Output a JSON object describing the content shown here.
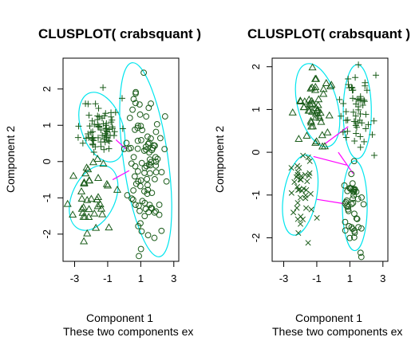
{
  "chart_data": [
    {
      "type": "scatter",
      "title": "CLUSPLOT( crabsquant )",
      "xlabel": "Component 1",
      "ylabel": "Component 2",
      "subtitle": "These two components ex",
      "x_ticks": [
        "-3",
        "-1",
        "1",
        "3"
      ],
      "y_ticks": [
        "2",
        "1",
        "0",
        "-1",
        "-2"
      ],
      "xlim": [
        -3.7,
        3.3
      ],
      "ylim": [
        -2.75,
        2.85
      ],
      "ellipse_color": "#00e5ee",
      "line_color": "#ff00ff",
      "point_color": "#1a5c1a",
      "ellipses": [
        {
          "cx": -1.35,
          "cy": 0.95,
          "rx": 1.25,
          "ry": 1.0,
          "angle": 20
        },
        {
          "cx": -1.85,
          "cy": -1.0,
          "rx": 1.3,
          "ry": 0.95,
          "angle": -25
        },
        {
          "cx": 1.3,
          "cy": 0.05,
          "rx": 1.35,
          "ry": 2.7,
          "angle": 8
        }
      ],
      "links": [
        [
          [
            -0.5,
            0.6
          ],
          [
            0.1,
            0.35
          ]
        ],
        [
          [
            -0.7,
            -0.5
          ],
          [
            0.3,
            -0.25
          ]
        ]
      ],
      "groups": [
        {
          "symbol": "plus",
          "cx": -1.4,
          "cy": 0.95,
          "sx": 0.55,
          "sy": 0.4,
          "n": 70,
          "seed": 11
        },
        {
          "symbol": "triangle",
          "cx": -1.8,
          "cy": -1.05,
          "sx": 0.6,
          "sy": 0.45,
          "n": 40,
          "seed": 23
        },
        {
          "symbol": "circle",
          "cx": 1.3,
          "cy": -0.1,
          "sx": 0.55,
          "sy": 1.05,
          "n": 100,
          "seed": 37
        }
      ]
    },
    {
      "type": "scatter",
      "title": "CLUSPLOT( crabsquant )",
      "xlabel": "Component 1",
      "ylabel": "Component 2",
      "subtitle": "These two components ex",
      "x_ticks": [
        "-3",
        "-1",
        "1",
        "3"
      ],
      "y_ticks": [
        "2",
        "1",
        "0",
        "-1",
        "-2"
      ],
      "xlim": [
        -3.7,
        3.3
      ],
      "ylim": [
        -2.55,
        2.2
      ],
      "ellipse_color": "#00e5ee",
      "line_color": "#ff00ff",
      "point_color": "#1a5c1a",
      "ellipses": [
        {
          "cx": -0.95,
          "cy": 1.1,
          "rx": 1.2,
          "ry": 1.0,
          "angle": 15
        },
        {
          "cx": 1.45,
          "cy": 0.95,
          "rx": 0.85,
          "ry": 1.1,
          "angle": 0
        },
        {
          "cx": -2.0,
          "cy": -1.0,
          "rx": 1.0,
          "ry": 0.95,
          "angle": -10
        },
        {
          "cx": 1.3,
          "cy": -1.25,
          "rx": 0.75,
          "ry": 1.05,
          "angle": 0
        }
      ],
      "links": [
        [
          [
            -0.5,
            0.2
          ],
          [
            0.9,
            0.6
          ]
        ],
        [
          [
            -1.2,
            -0.1
          ],
          [
            0.8,
            -0.3
          ]
        ],
        [
          [
            -1.0,
            -1.1
          ],
          [
            0.6,
            -1.2
          ]
        ],
        [
          [
            0.3,
            0.0
          ],
          [
            1.2,
            -0.5
          ]
        ]
      ],
      "groups": [
        {
          "symbol": "triangle",
          "cx": -1.0,
          "cy": 1.05,
          "sx": 0.5,
          "sy": 0.4,
          "n": 50,
          "seed": 5
        },
        {
          "symbol": "plus",
          "cx": 1.4,
          "cy": 0.85,
          "sx": 0.45,
          "sy": 0.45,
          "n": 55,
          "seed": 17
        },
        {
          "symbol": "cross",
          "cx": -2.0,
          "cy": -0.95,
          "sx": 0.45,
          "sy": 0.45,
          "n": 40,
          "seed": 29
        },
        {
          "symbol": "circle",
          "cx": 1.25,
          "cy": -1.3,
          "sx": 0.35,
          "sy": 0.45,
          "n": 45,
          "seed": 41
        }
      ]
    }
  ]
}
